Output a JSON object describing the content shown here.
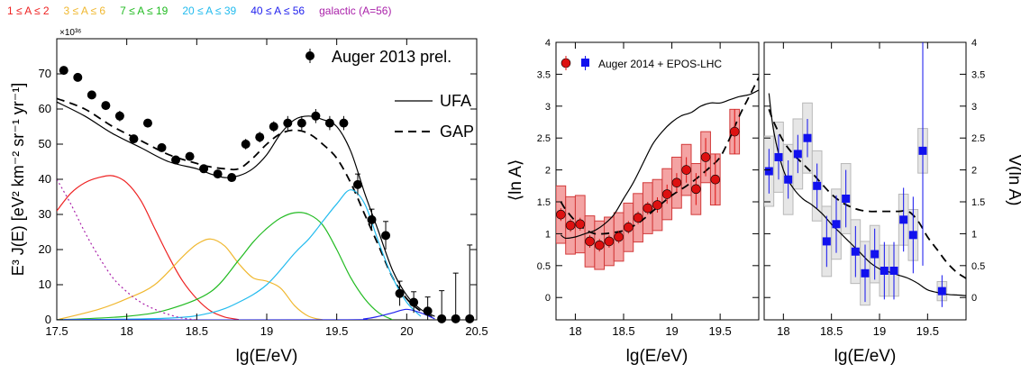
{
  "composition_legend": [
    {
      "label": "1 ≤ A ≤ 2",
      "color": "#ee2222"
    },
    {
      "label": "3 ≤ A ≤ 6",
      "color": "#f0b830"
    },
    {
      "label": "7 ≤ A ≤ 19",
      "color": "#22bb22"
    },
    {
      "label": "20 ≤ A ≤ 39",
      "color": "#22bbee"
    },
    {
      "label": "40 ≤ A ≤ 56",
      "color": "#2222ee"
    },
    {
      "label": "galactic (A=56)",
      "color": "#aa22aa"
    }
  ],
  "chart_data": [
    {
      "type": "line",
      "ylabel": "E³ J(E) [eV² km⁻² sr⁻¹ yr⁻¹]",
      "xlabel": "lg(E/eV)",
      "yscale_label": "×10³⁶",
      "xlim": [
        17.5,
        20.5
      ],
      "ylim": [
        0,
        80
      ],
      "xticks": [
        17.5,
        18,
        18.5,
        19,
        19.5,
        20,
        20.5
      ],
      "xtick_labels": [
        "17.5",
        "18",
        "18.5",
        "19",
        "19.5",
        "20",
        "20.5"
      ],
      "yticks": [
        0,
        10,
        20,
        30,
        40,
        50,
        60,
        70
      ],
      "ytick_labels": [
        "0",
        "10",
        "20",
        "30",
        "40",
        "50",
        "60",
        "70"
      ],
      "legend": {
        "position": "top-right",
        "data_label": "Auger 2013 prel.",
        "ufa_label": "UFA",
        "gap_label": "GAP"
      },
      "data_points": {
        "name": "Auger 2013 prel.",
        "x": [
          17.55,
          17.65,
          17.75,
          17.85,
          17.95,
          18.05,
          18.15,
          18.25,
          18.35,
          18.45,
          18.55,
          18.65,
          18.75,
          18.85,
          18.95,
          19.05,
          19.15,
          19.25,
          19.35,
          19.45,
          19.55,
          19.65,
          19.75,
          19.85,
          19.95,
          20.05,
          20.15,
          20.25,
          20.35,
          20.45
        ],
        "y": [
          71,
          69,
          64,
          61,
          58,
          51.5,
          56,
          49,
          45.5,
          46.5,
          43,
          41.5,
          40.5,
          50,
          52,
          55,
          56,
          56,
          58,
          56,
          56,
          38.5,
          28.5,
          24,
          7.5,
          5,
          2.5,
          0.3,
          0.3,
          0.3
        ],
        "err": [
          1,
          1,
          1,
          1,
          1.5,
          1,
          1,
          1,
          1,
          1,
          1,
          1,
          1,
          1.5,
          1.5,
          1.5,
          2,
          2,
          2,
          2,
          2,
          3,
          3,
          4,
          3.5,
          3,
          4,
          8,
          13,
          21
        ]
      },
      "series": [
        {
          "name": "UFA",
          "style": "solid",
          "color": "#000000",
          "x": [
            17.5,
            17.7,
            17.9,
            18.1,
            18.3,
            18.5,
            18.6,
            18.7,
            18.8,
            18.9,
            19.0,
            19.1,
            19.2,
            19.3,
            19.4,
            19.5,
            19.6,
            19.7,
            19.8,
            19.9,
            20.0,
            20.1,
            20.2
          ],
          "y": [
            62,
            58,
            53,
            49,
            45,
            43,
            41.5,
            40.5,
            41,
            43,
            47,
            53,
            57,
            58,
            57,
            55,
            48,
            36,
            25,
            14,
            7,
            3,
            1
          ]
        },
        {
          "name": "GAP",
          "style": "dashed",
          "color": "#000000",
          "x": [
            17.5,
            17.7,
            17.9,
            18.1,
            18.3,
            18.5,
            18.6,
            18.7,
            18.8,
            18.9,
            19.0,
            19.1,
            19.2,
            19.3,
            19.4,
            19.5,
            19.6,
            19.7,
            19.8,
            19.9,
            20.0,
            20.1,
            20.2
          ],
          "y": [
            63,
            60,
            55,
            51,
            47,
            44.5,
            43.5,
            43,
            43,
            46,
            50,
            53,
            54,
            53,
            50,
            46,
            39,
            30,
            21,
            12,
            6,
            2.5,
            0.5
          ]
        },
        {
          "name": "1 ≤ A ≤ 2",
          "style": "solid",
          "color": "#ee2222",
          "x": [
            17.5,
            17.6,
            17.7,
            17.8,
            17.9,
            18.0,
            18.1,
            18.2,
            18.3,
            18.4,
            18.5,
            18.6,
            18.7,
            18.8
          ],
          "y": [
            31,
            36,
            39,
            40.5,
            41,
            39,
            34,
            26,
            18,
            11,
            6,
            2.5,
            0.8,
            0.1
          ]
        },
        {
          "name": "3 ≤ A ≤ 6",
          "style": "solid",
          "color": "#f0b830",
          "x": [
            17.5,
            17.8,
            18.0,
            18.2,
            18.4,
            18.5,
            18.6,
            18.7,
            18.8,
            18.9,
            19.0,
            19.1,
            19.2,
            19.3,
            19.4
          ],
          "y": [
            0,
            3,
            6,
            10,
            18,
            21.5,
            23,
            21,
            16,
            12,
            11,
            9,
            4,
            1,
            0
          ]
        },
        {
          "name": "7 ≤ A ≤ 19",
          "style": "solid",
          "color": "#22bb22",
          "x": [
            17.5,
            18.0,
            18.3,
            18.6,
            18.8,
            18.9,
            19.0,
            19.1,
            19.2,
            19.3,
            19.4,
            19.5,
            19.6,
            19.7,
            19.8,
            19.9
          ],
          "y": [
            0,
            1,
            3,
            8,
            17,
            22,
            26,
            29,
            30.5,
            30,
            27,
            20,
            12,
            6,
            2,
            0
          ]
        },
        {
          "name": "20 ≤ A ≤ 39",
          "style": "solid",
          "color": "#22bbee",
          "x": [
            17.5,
            18.3,
            18.6,
            18.8,
            19.0,
            19.2,
            19.3,
            19.4,
            19.5,
            19.6,
            19.7,
            19.8,
            19.9,
            20.0,
            20.1
          ],
          "y": [
            0,
            0.5,
            2,
            5,
            10,
            19,
            23,
            28,
            33,
            37,
            33,
            22,
            12,
            5,
            1
          ]
        },
        {
          "name": "40 ≤ A ≤ 56",
          "style": "solid",
          "color": "#2222ee",
          "x": [
            17.5,
            19.5,
            19.7,
            19.8,
            19.9,
            20.0,
            20.1,
            20.2
          ],
          "y": [
            0,
            0,
            0.3,
            1,
            2,
            3,
            2,
            0.3
          ]
        },
        {
          "name": "galactic (A=56)",
          "style": "dotted",
          "color": "#aa22aa",
          "x": [
            17.5,
            17.6,
            17.7,
            17.8,
            17.9,
            18.0,
            18.1,
            18.2,
            18.3,
            18.4,
            18.5
          ],
          "y": [
            40,
            33,
            25,
            18,
            12,
            8,
            5,
            3,
            1.5,
            0.5,
            0
          ]
        }
      ]
    },
    {
      "type": "scatter",
      "ylabel": "⟨ln A⟩",
      "xlabel": "lg(E/eV)",
      "xlim": [
        17.8,
        19.9
      ],
      "ylim": [
        -0.35,
        4
      ],
      "xticks": [
        18,
        18.5,
        19,
        19.5
      ],
      "xtick_labels": [
        "18",
        "18.5",
        "19",
        "19.5"
      ],
      "yticks": [
        0,
        0.5,
        1,
        1.5,
        2,
        2.5,
        3,
        3.5,
        4
      ],
      "ytick_labels": [
        "0",
        "0.5",
        "1",
        "1.5",
        "2",
        "2.5",
        "3",
        "3.5",
        "4"
      ],
      "legend": {
        "position": "top-left",
        "label": "Auger 2014 + EPOS-LHC"
      },
      "points": {
        "x": [
          17.85,
          17.95,
          18.05,
          18.15,
          18.25,
          18.35,
          18.45,
          18.55,
          18.65,
          18.75,
          18.85,
          18.95,
          19.05,
          19.15,
          19.25,
          19.35,
          19.45,
          19.65
        ],
        "y": [
          1.3,
          1.13,
          1.15,
          0.88,
          0.82,
          0.88,
          0.95,
          1.1,
          1.25,
          1.4,
          1.45,
          1.62,
          1.8,
          2.0,
          1.7,
          2.2,
          1.85,
          2.6
        ],
        "stat_err": [
          0.1,
          0.1,
          0.1,
          0.1,
          0.1,
          0.1,
          0.1,
          0.1,
          0.1,
          0.1,
          0.12,
          0.15,
          0.15,
          0.2,
          0.25,
          0.3,
          0.4,
          0.35
        ],
        "sys_err": [
          0.45,
          0.45,
          0.45,
          0.4,
          0.38,
          0.38,
          0.38,
          0.38,
          0.38,
          0.4,
          0.4,
          0.4,
          0.4,
          0.4,
          0.4,
          0.4,
          0.4,
          0.35
        ]
      },
      "series": [
        {
          "name": "UFA",
          "style": "solid",
          "x": [
            17.85,
            17.9,
            18.0,
            18.1,
            18.2,
            18.3,
            18.4,
            18.5,
            18.6,
            18.7,
            18.8,
            18.9,
            19.0,
            19.1,
            19.2,
            19.3,
            19.4,
            19.5,
            19.6,
            19.7,
            19.8,
            19.9
          ],
          "y": [
            0.98,
            0.93,
            0.95,
            1.0,
            1.05,
            1.15,
            1.3,
            1.55,
            1.8,
            2.1,
            2.4,
            2.6,
            2.75,
            2.85,
            2.9,
            3.0,
            3.05,
            3.05,
            3.1,
            3.15,
            3.18,
            3.25
          ]
        },
        {
          "name": "GAP",
          "style": "dashed",
          "x": [
            17.85,
            17.9,
            18.0,
            18.1,
            18.2,
            18.3,
            18.4,
            18.5,
            18.6,
            18.7,
            18.8,
            18.9,
            19.0,
            19.1,
            19.2,
            19.3,
            19.4,
            19.5,
            19.6,
            19.7,
            19.8,
            19.9
          ],
          "y": [
            1.5,
            1.38,
            1.2,
            1.07,
            1.0,
            1.0,
            1.02,
            1.05,
            1.12,
            1.22,
            1.35,
            1.48,
            1.6,
            1.7,
            1.8,
            1.92,
            2.05,
            2.2,
            2.5,
            2.85,
            3.15,
            3.45
          ]
        }
      ]
    },
    {
      "type": "scatter",
      "ylabel": "V(ln A)",
      "xlabel": "lg(E/eV)",
      "xlim": [
        17.8,
        19.9
      ],
      "ylim": [
        -0.35,
        4
      ],
      "xticks": [
        18,
        18.5,
        19,
        19.5
      ],
      "xtick_labels": [
        "18",
        "18.5",
        "19",
        "19.5"
      ],
      "yticks": [
        0,
        0.5,
        1,
        1.5,
        2,
        2.5,
        3,
        3.5,
        4
      ],
      "ytick_labels": [
        "0",
        "0.5",
        "1",
        "1.5",
        "2",
        "2.5",
        "3",
        "3.5",
        "4"
      ],
      "points": {
        "x": [
          17.85,
          17.95,
          18.05,
          18.15,
          18.25,
          18.35,
          18.45,
          18.55,
          18.65,
          18.75,
          18.85,
          18.95,
          19.05,
          19.15,
          19.25,
          19.35,
          19.45,
          19.65
        ],
        "y": [
          1.98,
          2.2,
          1.85,
          2.25,
          2.5,
          1.75,
          0.88,
          1.15,
          1.55,
          0.72,
          0.38,
          0.68,
          0.42,
          0.42,
          1.22,
          0.98,
          2.3,
          0.1
        ],
        "stat_err": [
          0.35,
          0.35,
          0.3,
          0.3,
          0.3,
          0.35,
          0.4,
          0.45,
          0.45,
          0.4,
          0.45,
          0.4,
          0.45,
          0.45,
          0.5,
          0.6,
          1.8,
          0.25
        ],
        "sys_err": [
          0.55,
          0.55,
          0.55,
          0.55,
          0.55,
          0.55,
          0.55,
          0.55,
          0.55,
          0.5,
          0.5,
          0.45,
          0.4,
          0.4,
          0.4,
          0.4,
          0.35,
          0.15
        ]
      },
      "series": [
        {
          "name": "UFA",
          "style": "solid",
          "x": [
            17.85,
            17.9,
            18.0,
            18.1,
            18.2,
            18.3,
            18.4,
            18.5,
            18.6,
            18.7,
            18.8,
            18.9,
            19.0,
            19.1,
            19.2,
            19.3,
            19.4,
            19.5,
            19.6,
            19.7,
            19.8,
            19.9
          ],
          "y": [
            3.2,
            2.6,
            2.0,
            1.72,
            1.55,
            1.45,
            1.32,
            1.15,
            1.0,
            0.85,
            0.7,
            0.55,
            0.45,
            0.4,
            0.35,
            0.3,
            0.22,
            0.12,
            0.08,
            0.05,
            0.04,
            0.03
          ]
        },
        {
          "name": "GAP",
          "style": "dashed",
          "x": [
            17.85,
            17.9,
            18.0,
            18.1,
            18.2,
            18.3,
            18.4,
            18.5,
            18.6,
            18.7,
            18.8,
            18.9,
            19.0,
            19.1,
            19.2,
            19.3,
            19.4,
            19.5,
            19.6,
            19.7,
            19.8,
            19.9
          ],
          "y": [
            2.95,
            2.75,
            2.45,
            2.25,
            2.1,
            1.95,
            1.78,
            1.62,
            1.5,
            1.42,
            1.37,
            1.35,
            1.35,
            1.35,
            1.35,
            1.35,
            1.2,
            0.95,
            0.75,
            0.55,
            0.4,
            0.3
          ]
        }
      ]
    }
  ]
}
